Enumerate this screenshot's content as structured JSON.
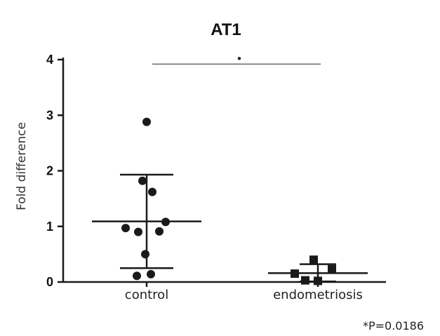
{
  "chart_data": {
    "type": "scatter",
    "title": "AT1",
    "ylabel": "Fold difference",
    "xlabel": "",
    "ylim": [
      0,
      4
    ],
    "yticks": [
      0,
      1,
      2,
      3,
      4
    ],
    "categories": [
      "control",
      "endometriosis"
    ],
    "series": [
      {
        "category": "control",
        "marker": "circle",
        "color": "#1a1a1a",
        "points": [
          2.88,
          1.82,
          1.62,
          1.08,
          0.97,
          0.91,
          0.9,
          0.5,
          0.14,
          0.11
        ],
        "mean": 1.09,
        "sd_upper": 1.93,
        "sd_lower": 0.25
      },
      {
        "category": "endometriosis",
        "marker": "square",
        "color": "#1a1a1a",
        "points": [
          0.4,
          0.23,
          0.15,
          0.03,
          0.02
        ],
        "mean": 0.16,
        "sd_upper": 0.32,
        "sd_lower": 0.01
      }
    ],
    "significance": {
      "symbol": "*",
      "bracket_y": 3.92,
      "footnote": "*P=0.0186"
    },
    "axis_color": "#1a1a1a",
    "bracket_color": "#666666"
  }
}
